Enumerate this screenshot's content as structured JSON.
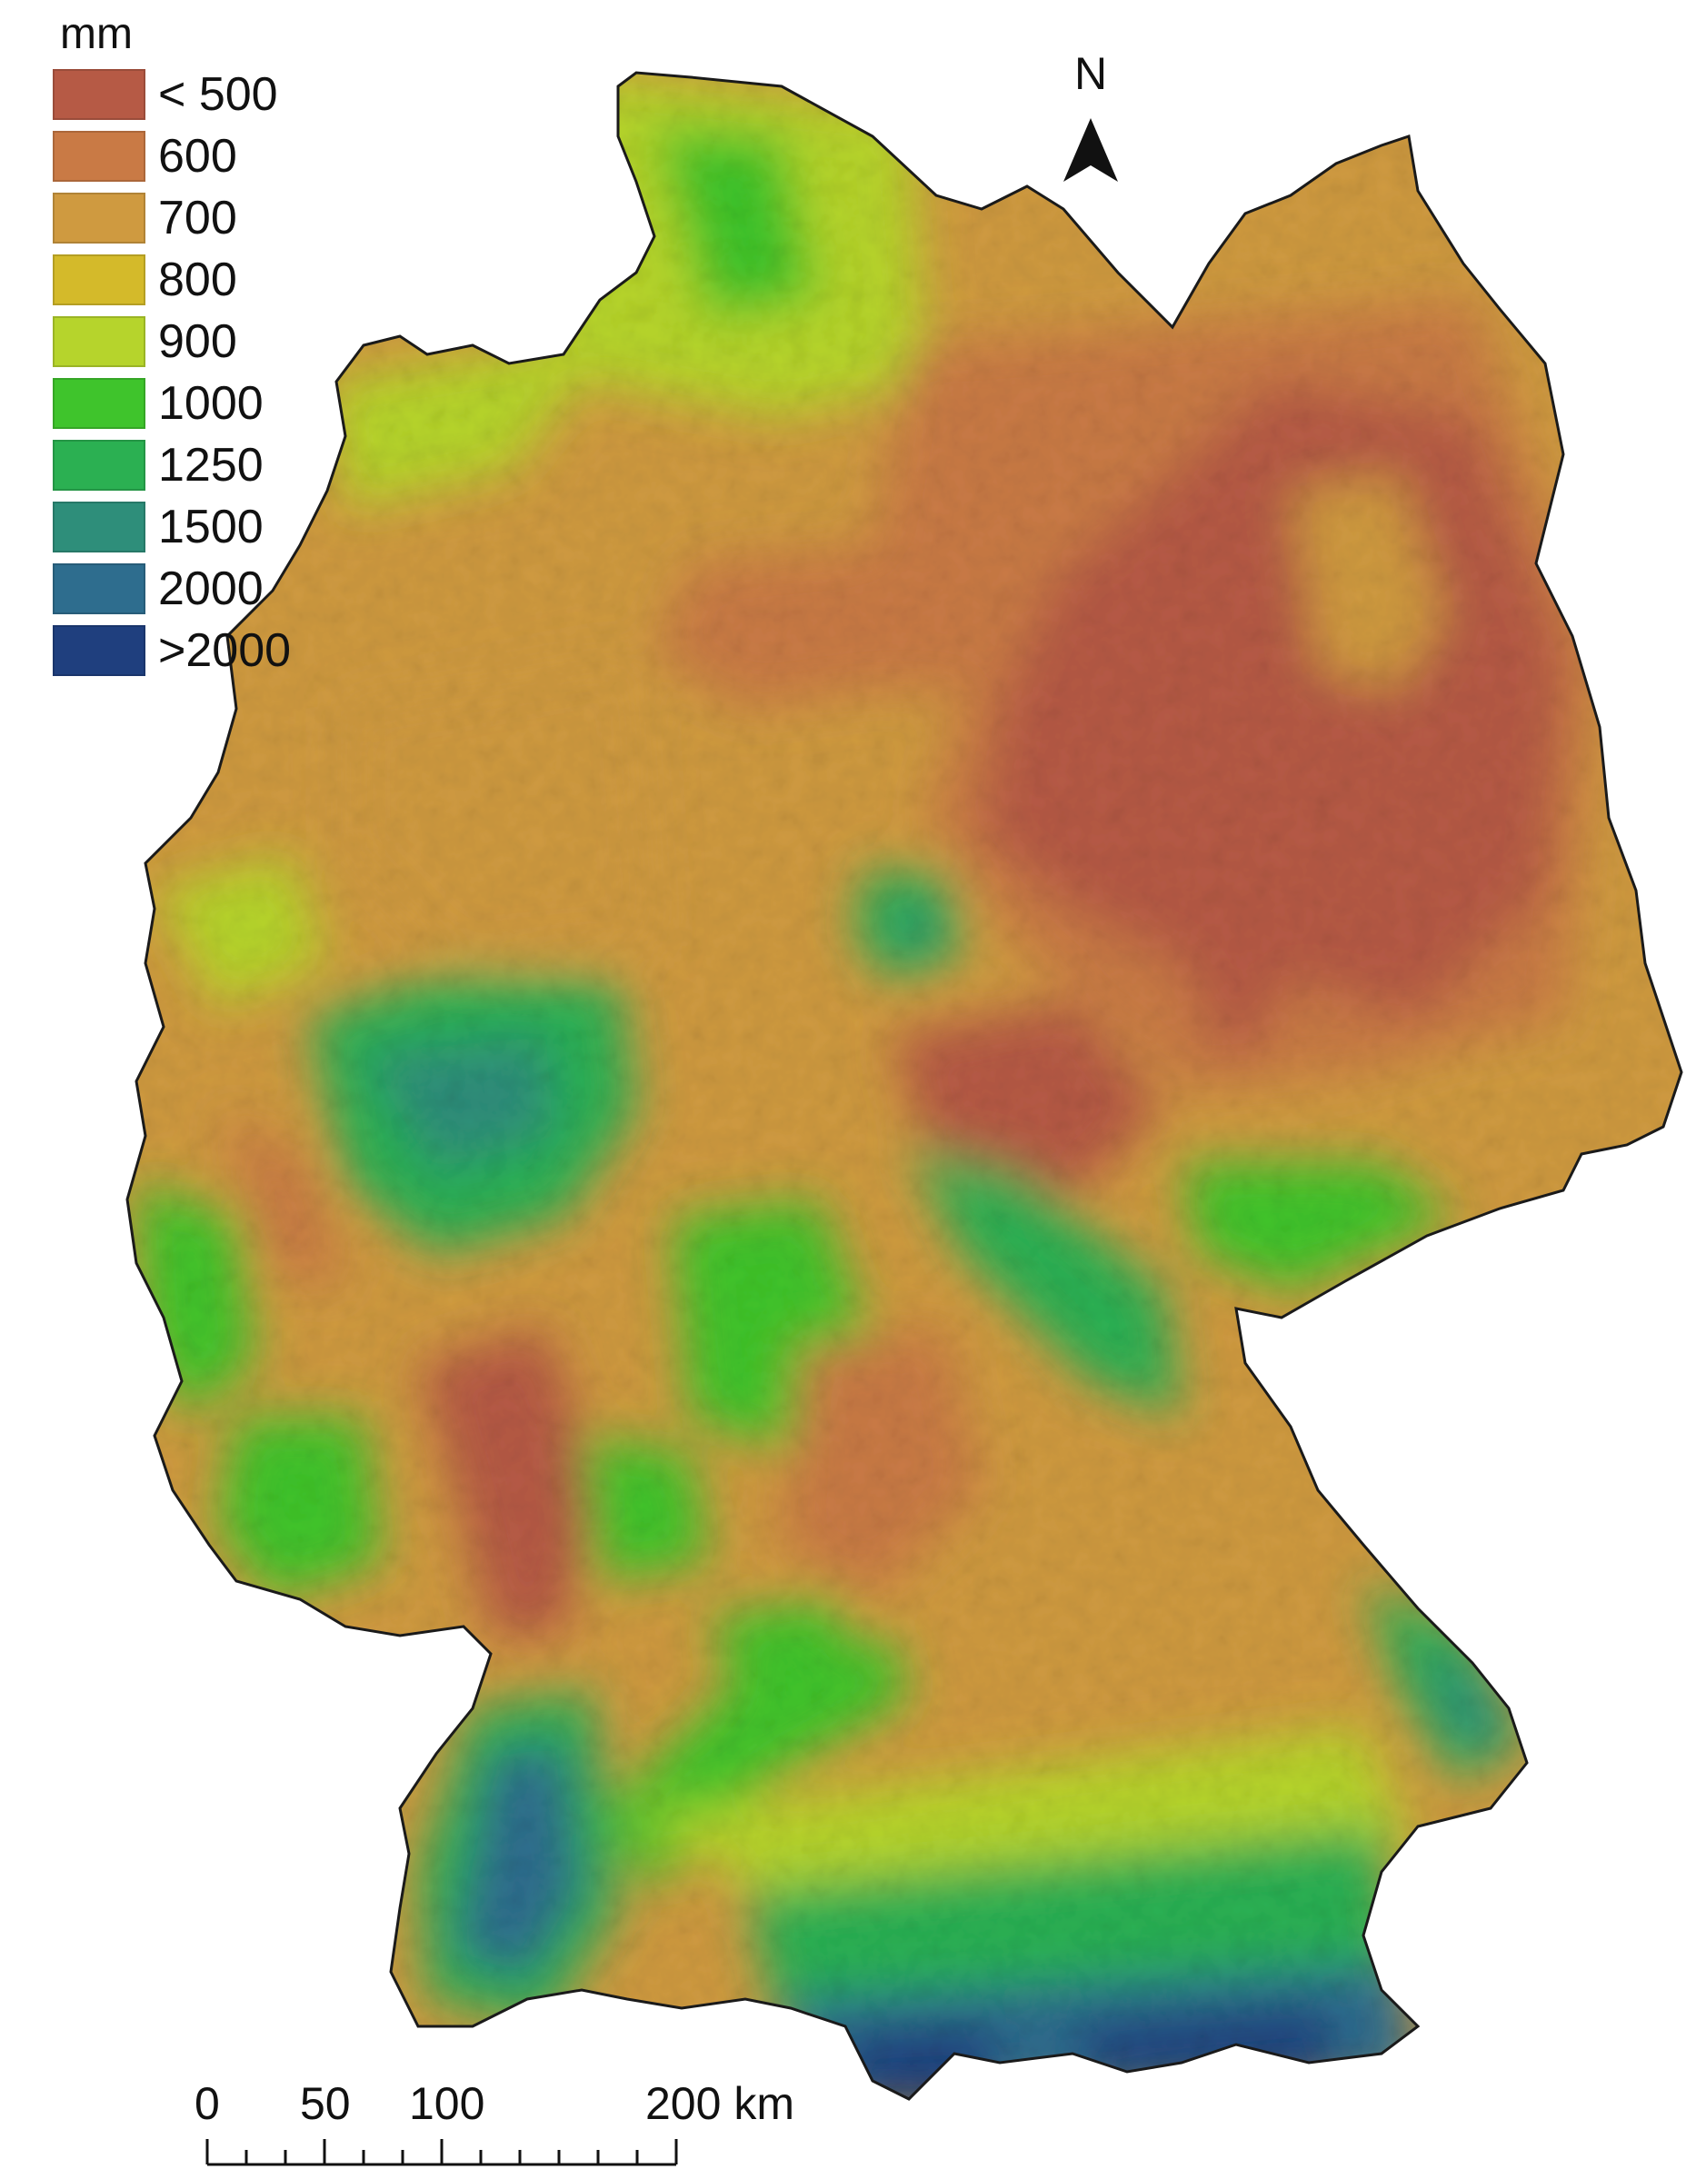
{
  "legend": {
    "title": "mm",
    "classes": [
      {
        "label": "< 500",
        "color": "#b65a45"
      },
      {
        "label": "600",
        "color": "#c97a45"
      },
      {
        "label": "700",
        "color": "#cf9a40"
      },
      {
        "label": "800",
        "color": "#d4ba2a"
      },
      {
        "label": "900",
        "color": "#b6d42c"
      },
      {
        "label": "1000",
        "color": "#3fc42c"
      },
      {
        "label": "1250",
        "color": "#2bb052"
      },
      {
        "label": "1500",
        "color": "#2e8e7a"
      },
      {
        "label": "2000",
        "color": "#2e6d8e"
      },
      {
        "label": ">2000",
        "color": "#1f3f7e"
      }
    ]
  },
  "north_arrow": {
    "letter": "N",
    "icon": "north-arrow-icon"
  },
  "scale_bar": {
    "labels": [
      "0",
      "50",
      "100",
      "200 km"
    ]
  },
  "map": {
    "icon": "germany-precipitation-map",
    "colors": {
      "background": "#ffffff",
      "outline": "#1a1a1a"
    }
  }
}
